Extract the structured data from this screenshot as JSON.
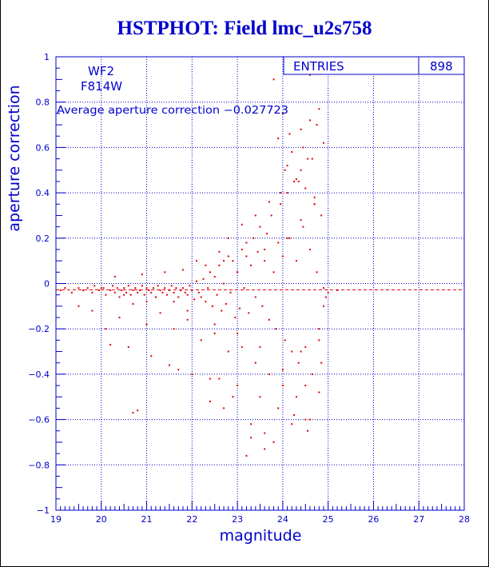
{
  "title": "HSTPHOT: Field lmc_u2s758",
  "colors": {
    "axes": "#0000cc",
    "points": "#e00000",
    "text": "#0000cc",
    "title": "#0000cc"
  },
  "chart_data": {
    "type": "scatter",
    "title": "HSTPHOT: Field lmc_u2s758",
    "xlabel": "magnitude",
    "ylabel": "aperture correction",
    "xlim": [
      19,
      28
    ],
    "ylim": [
      -1,
      1
    ],
    "xticks": [
      "19",
      "20",
      "21",
      "22",
      "23",
      "24",
      "25",
      "26",
      "27",
      "28"
    ],
    "yticks": [
      "−1",
      "−0.8",
      "−0.6",
      "−0.4",
      "−0.2",
      "0",
      "0.2",
      "0.4",
      "0.6",
      "0.8",
      "1"
    ],
    "grid": true,
    "annotations": {
      "chip": "WF2",
      "filter": "F814W",
      "average_text": "Average aperture correction −0.027723"
    },
    "average_value": -0.027723,
    "stats_box": {
      "label": "ENTRIES",
      "value": "898"
    },
    "series": [
      {
        "x": [
          19.1,
          19.2,
          19.35,
          19.5,
          19.6,
          19.7,
          19.8,
          19.85,
          19.95,
          20.05,
          20.1,
          20.2,
          20.25,
          20.3,
          20.35,
          20.4,
          20.45,
          20.5,
          20.55,
          20.6,
          20.65,
          20.7,
          20.75,
          20.8,
          20.85,
          20.9,
          20.95,
          21.0,
          21.05,
          21.1,
          21.15,
          21.2,
          21.25,
          21.3,
          21.35,
          21.4,
          21.45,
          21.5,
          21.55,
          21.6,
          21.65,
          21.7,
          21.75,
          21.8,
          21.85,
          21.9,
          21.95,
          22.0,
          22.05,
          22.1,
          22.15,
          22.2,
          22.25,
          22.3,
          22.35,
          22.4,
          22.45,
          22.5,
          22.55,
          22.6,
          22.65,
          22.7,
          22.75,
          22.8,
          22.85,
          22.9,
          22.95,
          23.0,
          23.05,
          23.1,
          23.15,
          23.2,
          23.25,
          23.3,
          23.35,
          23.4,
          23.45,
          23.5,
          23.55,
          23.6,
          23.65,
          23.7,
          23.75,
          23.8,
          23.85,
          23.9,
          23.95,
          24.0,
          24.05,
          24.1,
          24.15,
          24.2,
          24.25,
          24.3,
          24.35,
          24.4,
          24.45,
          24.5,
          24.55,
          24.6,
          24.65,
          24.7,
          24.75,
          24.8,
          24.85,
          24.9,
          19.5,
          19.8,
          20.1,
          20.4,
          20.7,
          21.0,
          21.3,
          21.6,
          21.9,
          22.2,
          22.5,
          22.8,
          23.1,
          23.4,
          23.7,
          24.0,
          24.3,
          24.6,
          20.2,
          20.6,
          21.1,
          21.5,
          22.0,
          22.6,
          23.0,
          23.5,
          23.9,
          24.2,
          24.5,
          24.8,
          20.3,
          20.9,
          21.4,
          21.8,
          22.3,
          22.7,
          23.2,
          23.6,
          24.1,
          24.4,
          24.7,
          20.8,
          21.7,
          22.4,
          22.9,
          23.3,
          23.8,
          24.25,
          24.55,
          21.2,
          22.1,
          22.8,
          23.4,
          23.95,
          24.35,
          24.65,
          24.9,
          21.6,
          22.6,
          23.1,
          23.7,
          24.05,
          24.45,
          24.75,
          20.0,
          20.5,
          21.0,
          21.9,
          22.5,
          23.0,
          23.5,
          24.0,
          24.5,
          24.85,
          23.8,
          24.0,
          24.2,
          24.4,
          24.6,
          24.8,
          23.9,
          24.1,
          24.3,
          24.5,
          24.7,
          22.7,
          23.2,
          23.6,
          24.15,
          24.6,
          20.7,
          22.4,
          23.3,
          23.6,
          24.4,
          24.8,
          25.0,
          25.2,
          24.9,
          24.95
        ],
        "y": [
          -0.03,
          -0.02,
          -0.04,
          -0.02,
          -0.03,
          -0.02,
          -0.04,
          -0.01,
          -0.03,
          -0.02,
          -0.05,
          -0.03,
          -0.01,
          -0.04,
          -0.02,
          -0.06,
          -0.03,
          -0.02,
          -0.04,
          -0.01,
          -0.05,
          -0.03,
          -0.02,
          -0.04,
          -0.03,
          -0.01,
          -0.05,
          -0.02,
          -0.03,
          -0.04,
          -0.02,
          -0.06,
          -0.01,
          -0.03,
          -0.04,
          -0.02,
          -0.05,
          -0.03,
          -0.01,
          -0.04,
          -0.02,
          -0.06,
          -0.03,
          -0.02,
          -0.04,
          -0.05,
          -0.01,
          -0.03,
          -0.07,
          0.01,
          -0.04,
          -0.06,
          0.02,
          -0.08,
          -0.02,
          0.05,
          -0.1,
          0.03,
          -0.05,
          0.08,
          -0.12,
          0.0,
          -0.09,
          0.12,
          -0.04,
          0.1,
          -0.15,
          0.05,
          -0.11,
          0.15,
          -0.02,
          0.18,
          -0.13,
          0.08,
          0.2,
          -0.06,
          0.14,
          0.25,
          -0.1,
          0.1,
          0.22,
          -0.16,
          0.3,
          0.05,
          -0.2,
          0.18,
          0.35,
          0.12,
          -0.25,
          0.4,
          0.2,
          -0.3,
          0.45,
          0.1,
          -0.35,
          0.5,
          0.25,
          -0.28,
          0.55,
          0.15,
          -0.4,
          0.35,
          0.05,
          -0.2,
          0.3,
          -0.1,
          -0.1,
          -0.12,
          -0.2,
          -0.15,
          -0.09,
          -0.18,
          -0.13,
          -0.2,
          -0.16,
          -0.25,
          -0.22,
          -0.3,
          -0.28,
          -0.35,
          -0.4,
          -0.45,
          -0.5,
          -0.6,
          -0.27,
          -0.28,
          -0.32,
          -0.36,
          -0.4,
          -0.42,
          -0.45,
          -0.5,
          -0.55,
          -0.62,
          -0.6,
          -0.48,
          0.03,
          0.04,
          0.05,
          0.06,
          0.08,
          0.1,
          0.12,
          0.15,
          0.2,
          0.28,
          0.35,
          -0.56,
          -0.38,
          -0.42,
          -0.5,
          -0.62,
          -0.7,
          -0.58,
          -0.65,
          -0.06,
          0.1,
          0.2,
          0.3,
          0.4,
          0.45,
          0.55,
          0.62,
          -0.08,
          0.14,
          0.26,
          0.36,
          0.5,
          0.6,
          0.7,
          -0.02,
          -0.05,
          -0.08,
          -0.12,
          -0.18,
          -0.22,
          -0.28,
          -0.38,
          -0.45,
          -0.35,
          0.9,
          0.75,
          0.58,
          0.68,
          0.72,
          0.77,
          0.64,
          0.52,
          0.46,
          0.42,
          0.38,
          -0.55,
          -0.76,
          -0.73,
          0.66,
          0.92,
          -0.57,
          -0.52,
          -0.68,
          -0.66,
          -0.3,
          -0.25,
          -0.04,
          -0.03,
          -0.02,
          -0.06
        ]
      }
    ]
  }
}
